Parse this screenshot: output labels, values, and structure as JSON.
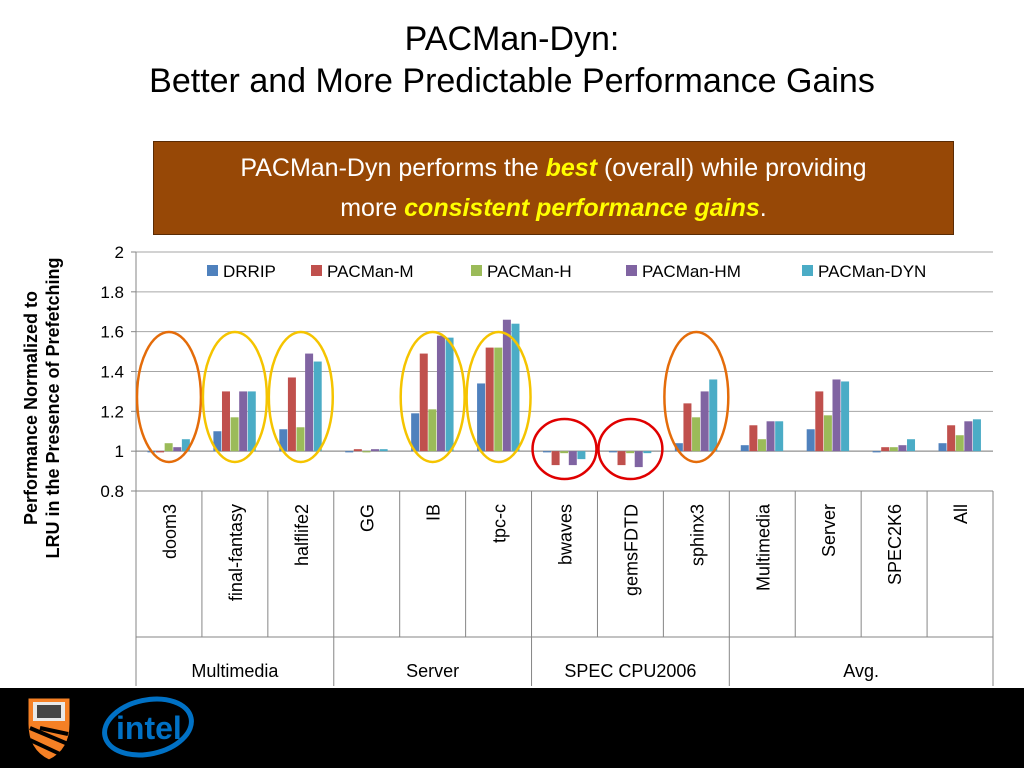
{
  "title": {
    "line1": "PACMan-Dyn:",
    "line2": "Better and More Predictable Performance Gains"
  },
  "callout": {
    "part1": "PACMan-Dyn performs the ",
    "best": "best",
    "part2": " (overall) while providing",
    "part3": "more ",
    "consistent": "consistent performance gains",
    "part4": "."
  },
  "colors": {
    "callout_bg": "#974806",
    "highlight": "#ffff00",
    "ellipse_orange": "#e46c0a",
    "ellipse_yellow": "#f5c400",
    "ellipse_red": "#e00000"
  },
  "chart_data": {
    "type": "bar",
    "ylabel": "Performance Normalized to LRU in the Presence of Prefetching",
    "ylabel_lines": [
      "Performance Normalized to",
      "LRU in the Presence of Prefetching"
    ],
    "ylim": [
      0.8,
      2
    ],
    "yticks": [
      "0.8",
      "1",
      "1.2",
      "1.4",
      "1.6",
      "1.8",
      "2"
    ],
    "grid": true,
    "legend_position": "top",
    "categories": [
      "doom3",
      "final-fantasy",
      "halflife2",
      "GG",
      "IB",
      "tpc-c",
      "bwaves",
      "gemsFDTD",
      "sphinx3",
      "Multimedia",
      "Server",
      "SPEC2K6",
      "All"
    ],
    "groups": [
      {
        "label": "Multimedia",
        "span": 3
      },
      {
        "label": "Server",
        "span": 3
      },
      {
        "label": "SPEC CPU2006",
        "span": 3
      },
      {
        "label": "Avg.",
        "span": 4
      }
    ],
    "series": [
      {
        "name": "DRRIP",
        "color": "#4f81bd",
        "values": [
          1.0,
          1.1,
          1.11,
          1.0,
          1.19,
          1.34,
          1.0,
          1.0,
          1.04,
          1.03,
          1.11,
          1.0,
          1.04
        ]
      },
      {
        "name": "PACMan-M",
        "color": "#c0504d",
        "values": [
          1.0,
          1.3,
          1.37,
          1.01,
          1.49,
          1.52,
          0.93,
          0.93,
          1.24,
          1.13,
          1.3,
          1.02,
          1.13
        ]
      },
      {
        "name": "PACMan-H",
        "color": "#9bbb59",
        "values": [
          1.04,
          1.17,
          1.12,
          1.0,
          1.21,
          1.52,
          0.99,
          0.99,
          1.17,
          1.06,
          1.18,
          1.02,
          1.08
        ]
      },
      {
        "name": "PACMan-HM",
        "color": "#8064a2",
        "values": [
          1.02,
          1.3,
          1.49,
          1.01,
          1.58,
          1.66,
          0.93,
          0.92,
          1.3,
          1.15,
          1.36,
          1.03,
          1.15
        ]
      },
      {
        "name": "PACMan-DYN",
        "color": "#4bacc6",
        "values": [
          1.06,
          1.3,
          1.45,
          1.01,
          1.57,
          1.64,
          0.96,
          0.99,
          1.36,
          1.15,
          1.35,
          1.06,
          1.16
        ]
      }
    ],
    "annotations": [
      {
        "category": "doom3",
        "color": "orange"
      },
      {
        "category": "final-fantasy",
        "color": "yellow"
      },
      {
        "category": "halflife2",
        "color": "yellow"
      },
      {
        "category": "IB",
        "color": "yellow"
      },
      {
        "category": "tpc-c",
        "color": "yellow"
      },
      {
        "category": "bwaves",
        "color": "red"
      },
      {
        "category": "gemsFDTD",
        "color": "red"
      },
      {
        "category": "sphinx3",
        "color": "orange"
      }
    ]
  }
}
